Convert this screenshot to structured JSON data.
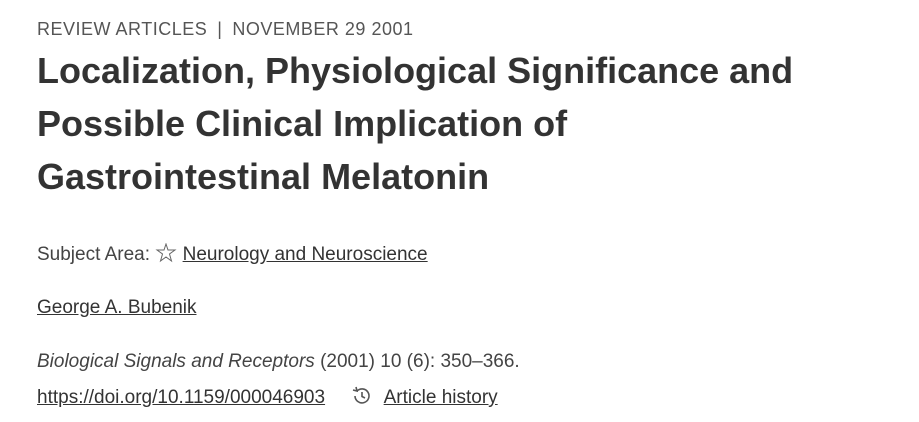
{
  "header": {
    "section": "REVIEW ARTICLES",
    "separator": "|",
    "date": "NOVEMBER 29 2001"
  },
  "title_lines": [
    "Localization, Physiological Significance and",
    "Possible Clinical Implication of",
    "Gastrointestinal Melatonin"
  ],
  "subject": {
    "label": "Subject Area:",
    "link": "Neurology and Neuroscience"
  },
  "author": "George A. Bubenik",
  "citation": {
    "journal": "Biological Signals and Receptors",
    "details": "(2001) 10 (6): 350–366."
  },
  "doi": "https://doi.org/10.1159/000046903",
  "history": "Article history"
}
